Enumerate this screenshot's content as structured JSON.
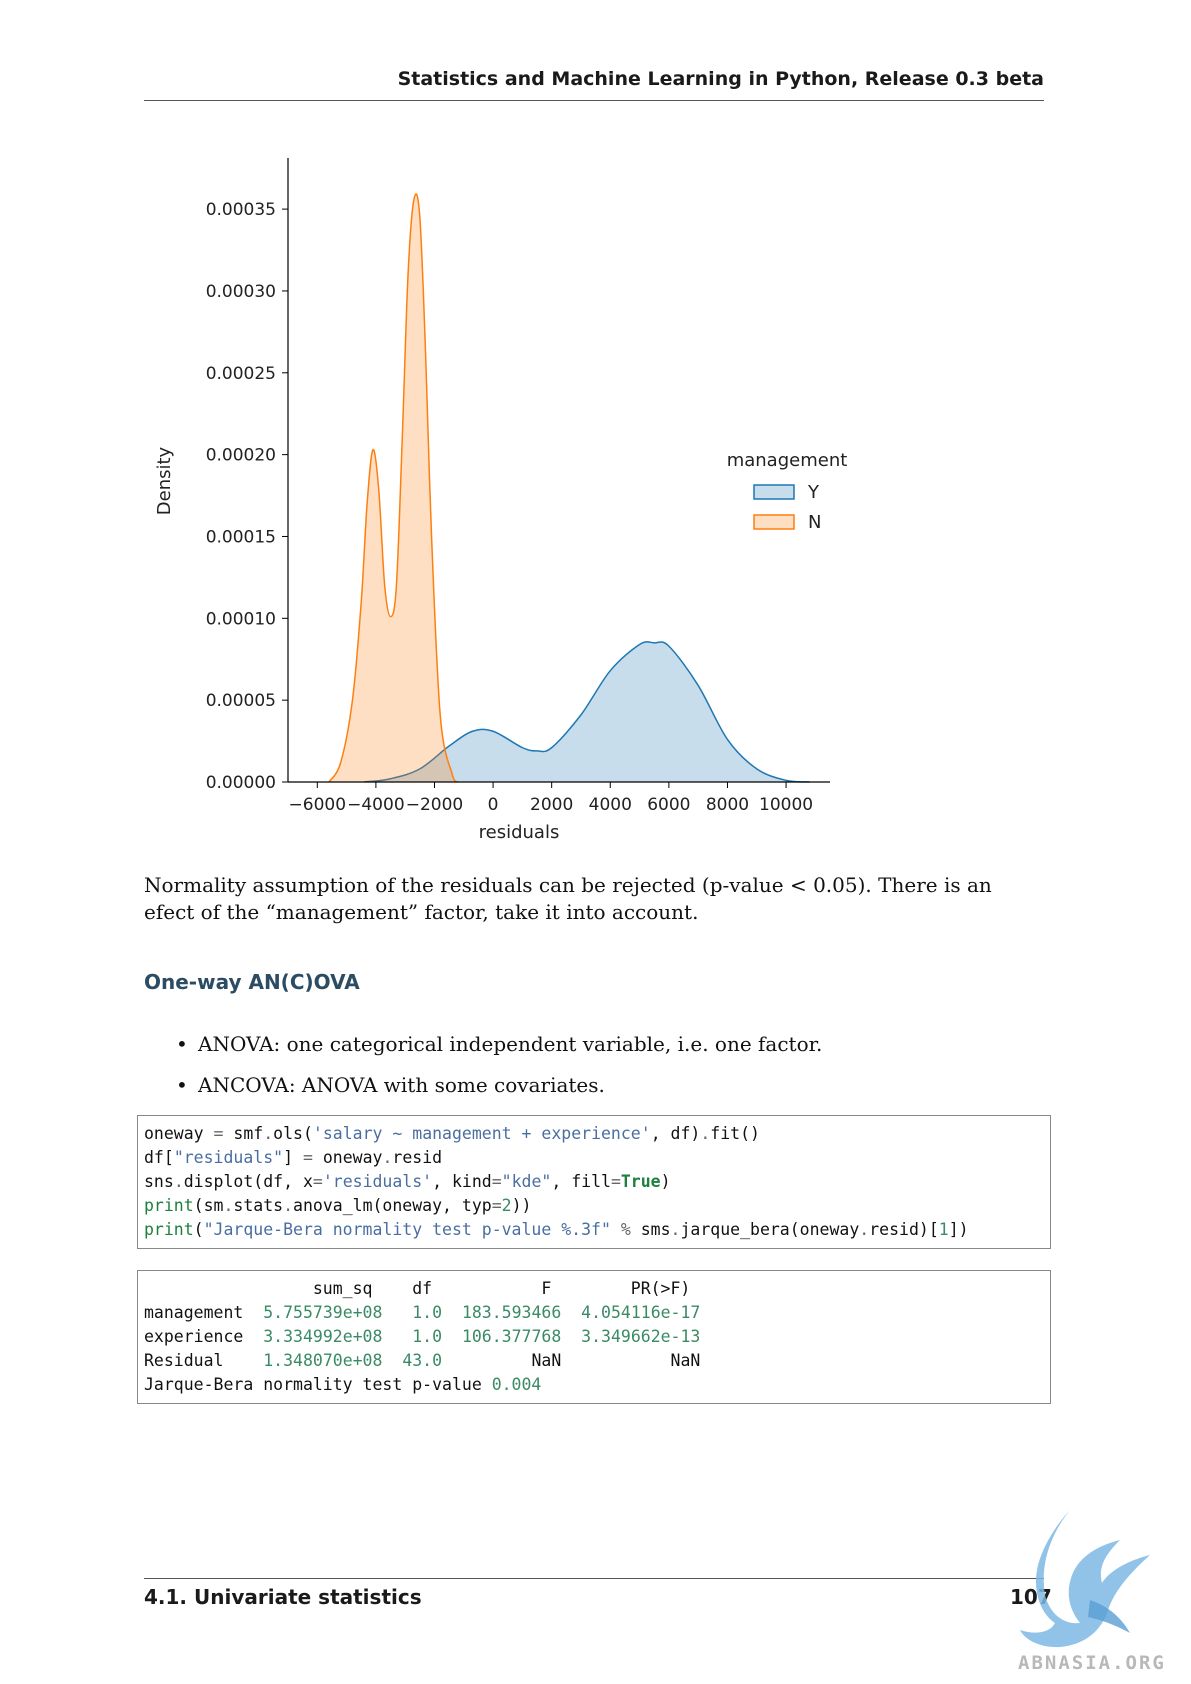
{
  "header": {
    "title": "Statistics and Machine Learning in Python, Release 0.3 beta"
  },
  "chart_data": {
    "type": "area",
    "title": "",
    "xlabel": "residuals",
    "ylabel": "Density",
    "xlim": [
      -7000,
      11500
    ],
    "ylim": [
      0,
      0.00038
    ],
    "x_ticks": [
      -6000,
      -4000,
      -2000,
      0,
      2000,
      4000,
      6000,
      8000,
      10000
    ],
    "x_tick_labels": [
      "−6000",
      "−4000",
      "−2000",
      "0",
      "2000",
      "4000",
      "6000",
      "8000",
      "10000"
    ],
    "y_ticks": [
      0,
      5e-05,
      0.0001,
      0.00015,
      0.0002,
      0.00025,
      0.0003,
      0.00035
    ],
    "y_tick_labels": [
      "0.00000",
      "0.00005",
      "0.00010",
      "0.00015",
      "0.00020",
      "0.00025",
      "0.00030",
      "0.00035"
    ],
    "legend": {
      "title": "management",
      "position": "right"
    },
    "series": [
      {
        "name": "Y",
        "color": "#1f77b4",
        "x": [
          -4400,
          -3500,
          -2500,
          -1500,
          -700,
          0,
          1000,
          1500,
          2000,
          3000,
          4000,
          5000,
          5500,
          6000,
          7000,
          8000,
          9000,
          10000,
          10800
        ],
        "y": [
          0.0,
          2e-06,
          8e-06,
          2.2e-05,
          3.1e-05,
          3.1e-05,
          2.1e-05,
          1.9e-05,
          2.1e-05,
          4.1e-05,
          6.8e-05,
          8.4e-05,
          8.5e-05,
          8.3e-05,
          5.9e-05,
          2.6e-05,
          8e-06,
          1e-06,
          0.0
        ]
      },
      {
        "name": "N",
        "color": "#ff7f0e",
        "x": [
          -5600,
          -5200,
          -4800,
          -4500,
          -4300,
          -4100,
          -3900,
          -3700,
          -3500,
          -3300,
          -3100,
          -2900,
          -2700,
          -2500,
          -2300,
          -2100,
          -1800,
          -1400,
          -1200
        ],
        "y": [
          0.0,
          1.2e-05,
          5e-05,
          0.00011,
          0.00017,
          0.000203,
          0.000178,
          0.00012,
          0.000101,
          0.00012,
          0.00021,
          0.000311,
          0.000356,
          0.000345,
          0.00026,
          0.00015,
          4e-05,
          5e-06,
          0.0
        ]
      }
    ]
  },
  "body": {
    "paragraph": "Normality assumption of the residuals can be rejected (p-value < 0.05). There is an efect of the “management” factor, take it into account.",
    "section_heading": "One-way AN(C)OVA",
    "bullets": [
      "ANOVA: one categorical independent variable, i.e. one factor.",
      "ANCOVA: ANOVA with some covariates."
    ]
  },
  "code_input": {
    "lines": [
      [
        [
          "t",
          "oneway "
        ],
        [
          "o",
          "="
        ],
        [
          "t",
          " smf"
        ],
        [
          "o",
          "."
        ],
        [
          "t",
          "ols("
        ],
        [
          "s",
          "'salary ~ management + experience'"
        ],
        [
          "t",
          ", df)"
        ],
        [
          "o",
          "."
        ],
        [
          "t",
          "fit()"
        ]
      ],
      [
        [
          "t",
          "df["
        ],
        [
          "s",
          "\"residuals\""
        ],
        [
          "t",
          "] "
        ],
        [
          "o",
          "="
        ],
        [
          "t",
          " oneway"
        ],
        [
          "o",
          "."
        ],
        [
          "t",
          "resid"
        ]
      ],
      [
        [
          "t",
          "sns"
        ],
        [
          "o",
          "."
        ],
        [
          "t",
          "displot(df, x"
        ],
        [
          "o",
          "="
        ],
        [
          "s",
          "'residuals'"
        ],
        [
          "t",
          ", kind"
        ],
        [
          "o",
          "="
        ],
        [
          "s",
          "\"kde\""
        ],
        [
          "t",
          ", fill"
        ],
        [
          "o",
          "="
        ],
        [
          "b",
          "True"
        ],
        [
          "t",
          ")"
        ]
      ],
      [
        [
          "k",
          "print"
        ],
        [
          "t",
          "(sm"
        ],
        [
          "o",
          "."
        ],
        [
          "t",
          "stats"
        ],
        [
          "o",
          "."
        ],
        [
          "t",
          "anova_lm(oneway, typ"
        ],
        [
          "o",
          "="
        ],
        [
          "n",
          "2"
        ],
        [
          "t",
          "))"
        ]
      ],
      [
        [
          "k",
          "print"
        ],
        [
          "t",
          "("
        ],
        [
          "s",
          "\"Jarque-Bera normality test p-value %.3f\""
        ],
        [
          "t",
          " "
        ],
        [
          "o",
          "%"
        ],
        [
          "t",
          " sms"
        ],
        [
          "o",
          "."
        ],
        [
          "t",
          "jarque_bera(oneway"
        ],
        [
          "o",
          "."
        ],
        [
          "t",
          "resid)["
        ],
        [
          "n",
          "1"
        ],
        [
          "t",
          "])"
        ]
      ]
    ]
  },
  "code_output": {
    "lines": [
      [
        [
          "t",
          "                 sum_sq    df           F        PR(>F)"
        ]
      ],
      [
        [
          "t",
          "management  "
        ],
        [
          "n",
          "5.755739e+08"
        ],
        [
          "t",
          "   "
        ],
        [
          "n",
          "1.0"
        ],
        [
          "t",
          "  "
        ],
        [
          "n",
          "183.593466"
        ],
        [
          "t",
          "  "
        ],
        [
          "n",
          "4.054116e-17"
        ]
      ],
      [
        [
          "t",
          "experience  "
        ],
        [
          "n",
          "3.334992e+08"
        ],
        [
          "t",
          "   "
        ],
        [
          "n",
          "1.0"
        ],
        [
          "t",
          "  "
        ],
        [
          "n",
          "106.377768"
        ],
        [
          "t",
          "  "
        ],
        [
          "n",
          "3.349662e-13"
        ]
      ],
      [
        [
          "t",
          "Residual    "
        ],
        [
          "n",
          "1.348070e+08"
        ],
        [
          "t",
          "  "
        ],
        [
          "n",
          "43.0"
        ],
        [
          "t",
          "         NaN           NaN"
        ]
      ],
      [
        [
          "t",
          "Jarque-Bera normality test p-value "
        ],
        [
          "n",
          "0.004"
        ]
      ]
    ]
  },
  "footer": {
    "section": "4.1.  Univariate statistics",
    "page_number": "107"
  },
  "watermark": {
    "text": "ABNASIA.ORG"
  }
}
